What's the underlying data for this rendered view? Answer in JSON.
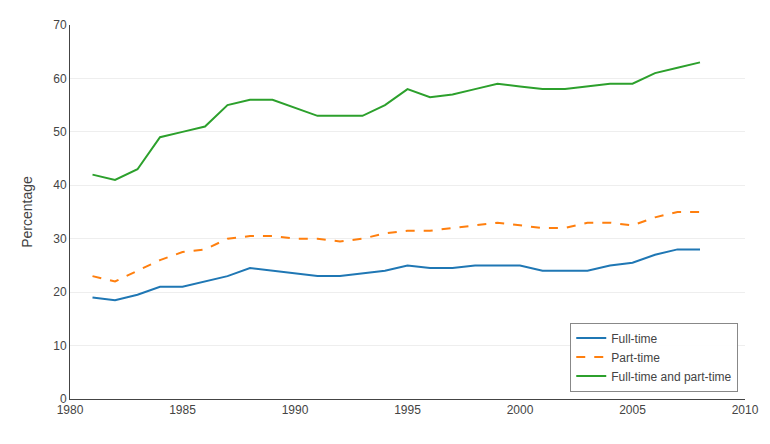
{
  "chart_data": {
    "type": "line",
    "ylabel": "Percentage",
    "x": [
      1981,
      1982,
      1983,
      1984,
      1985,
      1986,
      1987,
      1988,
      1989,
      1990,
      1991,
      1992,
      1993,
      1994,
      1995,
      1996,
      1997,
      1998,
      1999,
      2000,
      2001,
      2002,
      2003,
      2004,
      2005,
      2006,
      2007,
      2008
    ],
    "series": [
      {
        "name": "Full-time",
        "line_style": "solid",
        "values": [
          19,
          18.5,
          19.5,
          21,
          21,
          22,
          23,
          24.5,
          24,
          23.5,
          23,
          23,
          23.5,
          24,
          25,
          24.5,
          24.5,
          25,
          25,
          25,
          24,
          24,
          24,
          25,
          25.5,
          27,
          28,
          28
        ]
      },
      {
        "name": "Part-time",
        "line_style": "dashed",
        "values": [
          23,
          22,
          24,
          26,
          27.5,
          28,
          30,
          30.5,
          30.5,
          30,
          30,
          29.5,
          30,
          31,
          31.5,
          31.5,
          32,
          32.5,
          33,
          32.5,
          32,
          32,
          33,
          33,
          32.5,
          34,
          35,
          35
        ]
      },
      {
        "name": "Full-time and part-time",
        "line_style": "solid",
        "values": [
          42,
          41,
          43,
          49,
          50,
          51,
          55,
          56,
          56,
          54.5,
          53,
          53,
          53,
          55,
          58,
          56.5,
          57,
          58,
          59,
          58.5,
          58,
          58,
          58.5,
          59,
          59,
          61,
          62,
          63
        ]
      }
    ],
    "xlim": [
      1980,
      2010
    ],
    "xticks": [
      1980,
      1985,
      1990,
      1995,
      2000,
      2005,
      2010
    ],
    "ylim": [
      0,
      70
    ],
    "yticks": [
      0,
      10,
      20,
      30,
      40,
      50,
      60,
      70
    ],
    "grid": true,
    "legend": "lower right"
  }
}
